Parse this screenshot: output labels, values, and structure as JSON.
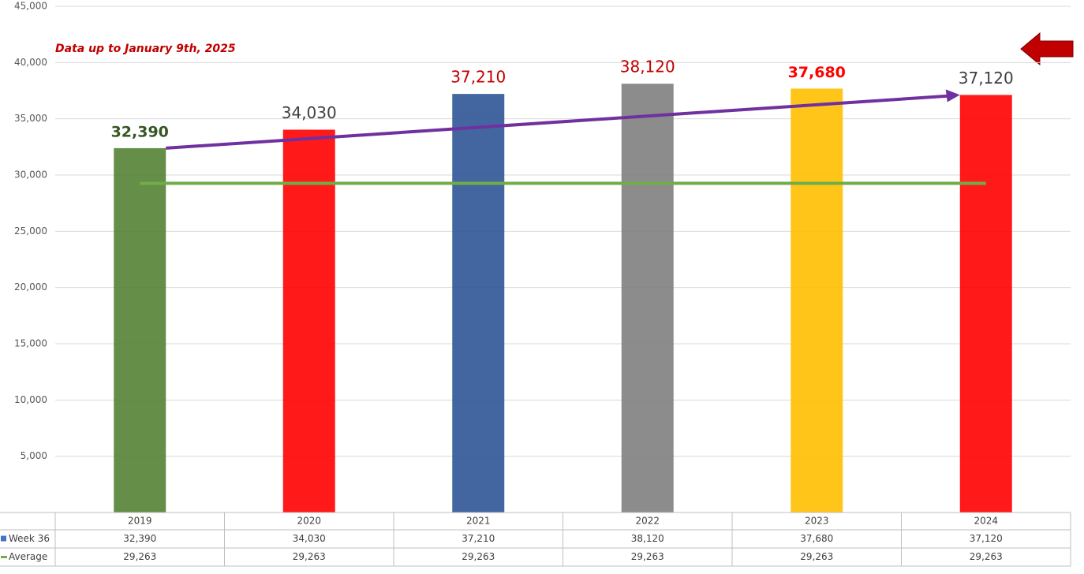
{
  "chart_data": {
    "type": "bar",
    "annotation": "Data up to January 9th, 2025",
    "categories": [
      "2019",
      "2020",
      "2021",
      "2022",
      "2023",
      "2024"
    ],
    "series": [
      {
        "name": "Week 36",
        "color": "#4472c4",
        "bar_colors": [
          "#548235",
          "#ff0000",
          "#2f5597",
          "#7f7f7f",
          "#ffc000",
          "#ff0000"
        ],
        "values": [
          32390,
          34030,
          37210,
          38120,
          37680,
          37120
        ],
        "value_labels": [
          "32,390",
          "34,030",
          "37,210",
          "38,120",
          "37,680",
          "37,120"
        ],
        "value_label_colors": [
          "#375623",
          "#404040",
          "#c00000",
          "#c00000",
          "#ff0000",
          "#404040"
        ]
      },
      {
        "name": "Average",
        "color": "#70ad47",
        "values": [
          29263,
          29263,
          29263,
          29263,
          29263,
          29263
        ],
        "value_labels": [
          "29,263",
          "29,263",
          "29,263",
          "29,263",
          "29,263",
          "29,263"
        ]
      }
    ],
    "ylim": [
      0,
      45000
    ],
    "yticks": [
      {
        "value": 0,
        "label": "-"
      },
      {
        "value": 5000,
        "label": "5,000"
      },
      {
        "value": 10000,
        "label": "10,000"
      },
      {
        "value": 15000,
        "label": "15,000"
      },
      {
        "value": 20000,
        "label": "20,000"
      },
      {
        "value": 25000,
        "label": "25,000"
      },
      {
        "value": 30000,
        "label": "30,000"
      },
      {
        "value": 35000,
        "label": "35,000"
      },
      {
        "value": 40000,
        "label": "40,000"
      },
      {
        "value": 45000,
        "label": "45,000"
      }
    ],
    "grid": true
  }
}
